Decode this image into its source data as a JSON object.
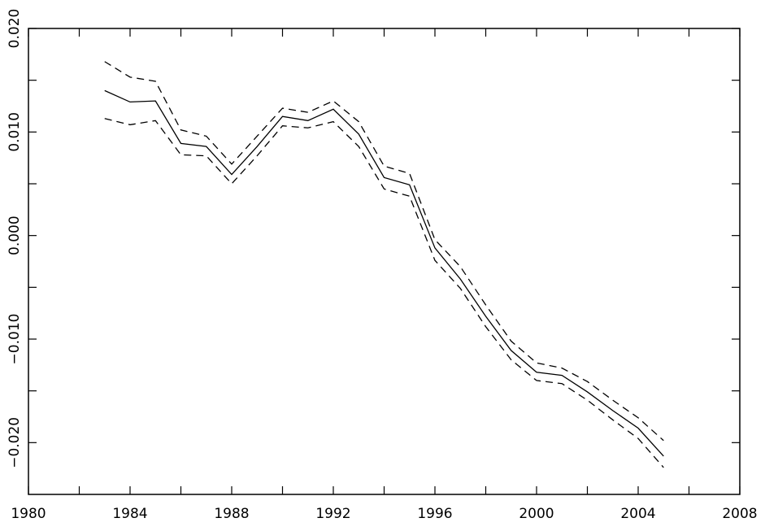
{
  "chart_data": {
    "type": "line",
    "x": [
      1983,
      1984,
      1985,
      1986,
      1987,
      1988,
      1989,
      1990,
      1991,
      1992,
      1993,
      1994,
      1995,
      1996,
      1997,
      1998,
      1999,
      2000,
      2001,
      2002,
      2003,
      2004,
      2005
    ],
    "series": [
      {
        "color": "#000000",
        "dashed": false,
        "values": [
          0.014,
          0.0129,
          0.013,
          0.0089,
          0.0086,
          0.0059,
          0.0086,
          0.0115,
          0.0111,
          0.0122,
          0.0098,
          0.0056,
          0.0049,
          -0.0012,
          -0.0042,
          -0.0078,
          -0.0111,
          -0.0132,
          -0.0135,
          -0.0151,
          -0.0169,
          -0.0186,
          -0.0213
        ]
      },
      {
        "color": "#000000",
        "dashed": true,
        "values": [
          0.0168,
          0.0153,
          0.0149,
          0.0102,
          0.0096,
          0.0069,
          0.0096,
          0.0123,
          0.0119,
          0.013,
          0.011,
          0.0067,
          0.006,
          -0.0004,
          -0.003,
          -0.0067,
          -0.0102,
          -0.0123,
          -0.0128,
          -0.0141,
          -0.0159,
          -0.0176,
          -0.0198
        ]
      },
      {
        "color": "#000000",
        "dashed": true,
        "values": [
          0.0113,
          0.0107,
          0.0111,
          0.0078,
          0.0077,
          0.005,
          0.0077,
          0.0106,
          0.0104,
          0.011,
          0.0086,
          0.0045,
          0.0038,
          -0.0024,
          -0.0051,
          -0.0088,
          -0.012,
          -0.014,
          -0.0143,
          -0.0159,
          -0.0178,
          -0.0196,
          -0.0224
        ]
      }
    ],
    "xlim": [
      1980,
      2008
    ],
    "xticks": [
      1980,
      1984,
      1988,
      1992,
      1996,
      2000,
      2004,
      2008
    ],
    "xminor": [
      1982,
      1986,
      1990,
      1994,
      1998,
      2002,
      2006
    ],
    "ylim": [
      -0.025,
      0.02
    ],
    "yticks": [
      {
        "value": -0.02,
        "label": "−0.020"
      },
      {
        "value": -0.01,
        "label": "−0.010"
      },
      {
        "value": 0,
        "label": "0.000"
      },
      {
        "value": 0.01,
        "label": "0.010"
      },
      {
        "value": 0.02,
        "label": "0.020"
      }
    ],
    "yminor": [
      -0.015,
      -0.005,
      0.005,
      0.015
    ]
  }
}
